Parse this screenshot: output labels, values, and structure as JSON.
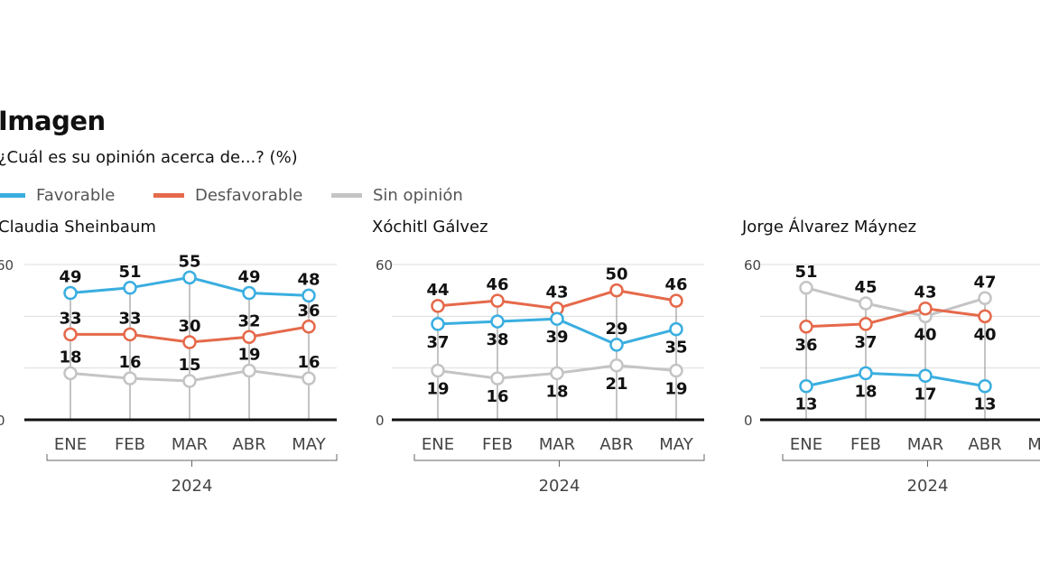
{
  "title": "Imagen",
  "subtitle": "¿Cuál es su opinión acerca de...? (%)",
  "legend": [
    {
      "label": "Favorable",
      "color": "#3aaee0"
    },
    {
      "label": "Desfavorable",
      "color": "#e5694a"
    },
    {
      "label": "Sin opinión",
      "color": "#c4c4c4"
    }
  ],
  "chart_data": [
    {
      "type": "line",
      "title": "Claudia Sheinbaum",
      "categories": [
        "ENE",
        "FEB",
        "MAR",
        "ABR",
        "MAY"
      ],
      "xgroup": "2024",
      "ylim": [
        0,
        60
      ],
      "yticks": [
        "0",
        "60"
      ],
      "grid": true,
      "series": [
        {
          "name": "Favorable",
          "values": [
            49,
            51,
            55,
            49,
            48
          ]
        },
        {
          "name": "Desfavorable",
          "values": [
            33,
            33,
            30,
            32,
            36
          ]
        },
        {
          "name": "Sin opinión",
          "values": [
            18,
            16,
            15,
            19,
            16
          ]
        }
      ]
    },
    {
      "type": "line",
      "title": "Xóchitl Gálvez",
      "categories": [
        "ENE",
        "FEB",
        "MAR",
        "ABR",
        "MAY"
      ],
      "xgroup": "2024",
      "ylim": [
        0,
        60
      ],
      "yticks": [
        "0",
        "60"
      ],
      "grid": true,
      "series": [
        {
          "name": "Favorable",
          "values": [
            37,
            38,
            39,
            29,
            35
          ]
        },
        {
          "name": "Desfavorable",
          "values": [
            44,
            46,
            43,
            50,
            46
          ]
        },
        {
          "name": "Sin opinión",
          "values": [
            19,
            16,
            18,
            21,
            19
          ]
        }
      ]
    },
    {
      "type": "line",
      "title": "Jorge Álvarez Máynez",
      "categories": [
        "ENE",
        "FEB",
        "MAR",
        "ABR",
        "MAY"
      ],
      "xgroup": "2024",
      "ylim": [
        0,
        60
      ],
      "yticks": [
        "0",
        "60"
      ],
      "grid": true,
      "series": [
        {
          "name": "Favorable",
          "values": [
            13,
            18,
            17,
            13,
            null
          ]
        },
        {
          "name": "Desfavorable",
          "values": [
            36,
            37,
            43,
            40,
            null
          ]
        },
        {
          "name": "Sin opinión",
          "values": [
            51,
            45,
            40,
            47,
            null
          ]
        }
      ]
    }
  ]
}
